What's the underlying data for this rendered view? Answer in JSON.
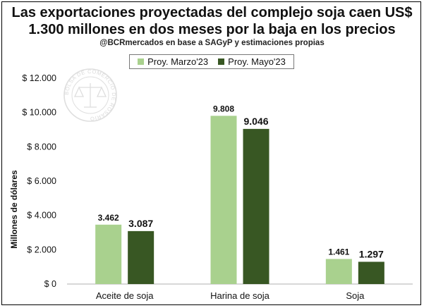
{
  "chart_data": {
    "type": "bar",
    "title": [
      "Las exportaciones proyectadas del complejo soja caen US$",
      "1.300 millones en dos meses por la baja en los precios"
    ],
    "subtitle": "@BCRmercados en base a SAGyP y estimaciones propias",
    "ylabel": "Millones de dólares",
    "xlabel": "",
    "ylim": [
      0,
      12000
    ],
    "yticks": [
      0,
      2000,
      4000,
      6000,
      8000,
      10000,
      12000
    ],
    "ytick_labels": [
      "$ 0",
      "$ 2.000",
      "$ 4.000",
      "$ 6.000",
      "$ 8.000",
      "$ 10.000",
      "$ 12.000"
    ],
    "categories": [
      "Aceite de soja",
      "Harina de soja",
      "Soja"
    ],
    "series": [
      {
        "name": "Proy. Marzo'23",
        "color": "#a9d18e",
        "values": [
          3462,
          9808,
          1461
        ],
        "labels": [
          "3.462",
          "9.808",
          "1.461"
        ]
      },
      {
        "name": "Proy. Mayo'23",
        "color": "#385723",
        "values": [
          3087,
          9046,
          1297
        ],
        "labels": [
          "3.087",
          "9.046",
          "1.297"
        ]
      }
    ],
    "grid": false,
    "legend_position": "top"
  },
  "watermark": {
    "text": "BOLSA DE COMERCIO DE ROSARIO",
    "icon": "scales-of-justice-seal-icon"
  }
}
